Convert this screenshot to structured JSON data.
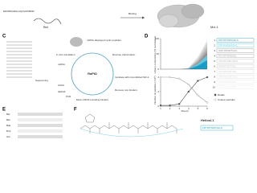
{
  "panel_a": {
    "sequence": "EDIIRNIARHLAQVGDSMDR",
    "label": "Bid"
  },
  "panel_b": {
    "arrow": "Binding",
    "protein": "Mcl-1"
  },
  "panel_c": {
    "letter": "C",
    "peptides": "mRNA-displayed cyclic peptides",
    "translation": "in vitro translation",
    "reverse": "Reverse transcription",
    "rapid": "RaPID",
    "incubate": "Incubate with immobilized Mcl-1",
    "remove": "Remove non-binders",
    "elute": "Elute mRNA encoding binders",
    "mrna": "mRNA",
    "cdna": "cDNA",
    "dsdna": "dsDNA",
    "sequencing": "Sequencing",
    "pcr": "PCR"
  },
  "panel_d": {
    "letter": "D",
    "composition": {
      "type": "area",
      "ylabel": "Library composition (% cumulative)",
      "x": [
        1,
        2,
        3,
        4,
        5,
        6
      ],
      "xlim": [
        1,
        6
      ],
      "ylim": [
        0,
        100
      ],
      "yticks": [
        0,
        50,
        100
      ],
      "series": [
        {
          "name": "1",
          "color": "#1b9cc4",
          "values": [
            0,
            0,
            0,
            1,
            12,
            30
          ]
        },
        {
          "name": "2",
          "color": "#5cc6e0",
          "values": [
            0,
            0,
            0,
            1,
            6,
            15
          ]
        },
        {
          "name": "3",
          "color": "#8e8e8e",
          "values": [
            0,
            0,
            0,
            0.5,
            4,
            10
          ]
        },
        {
          "name": "4",
          "color": "#a4a4a4",
          "values": [
            0,
            0,
            0,
            0.5,
            4,
            9
          ]
        },
        {
          "name": "5",
          "color": "#b6b6b6",
          "values": [
            0,
            0,
            0,
            0.5,
            3,
            8
          ]
        },
        {
          "name": "6",
          "color": "#c4c4c4",
          "values": [
            0,
            0,
            0,
            0.5,
            3,
            7
          ]
        },
        {
          "name": "7",
          "color": "#d0d0d0",
          "values": [
            0,
            0,
            0,
            0.3,
            3,
            6
          ]
        },
        {
          "name": "8",
          "color": "#dadada",
          "values": [
            0,
            0,
            0,
            0.3,
            2,
            5
          ]
        },
        {
          "name": "9",
          "color": "#e3e3e3",
          "values": [
            0,
            0,
            0,
            0.2,
            2,
            3
          ]
        },
        {
          "name": "10",
          "color": "#ebebeb",
          "values": [
            0,
            0,
            0,
            0.2,
            2,
            2
          ]
        }
      ],
      "sequences": [
        "FRYWTSRTGDLS",
        "FRYWNDMSGKL",
        "WRYWTARTGDL",
        "FKYWTSRSGEL",
        "YRYWTSRTGDM",
        "FRFWTSKTGDL",
        "FRYWSSRTGEL",
        "WRYWNSRTGDL",
        "FRYWTARSGDL",
        "FKYWNSRTGDL"
      ]
    },
    "counts": {
      "type": "line",
      "ylabel": "Number of peptides (×10⁵)",
      "xlabel": "Round",
      "x": [
        1,
        2,
        3,
        4,
        5,
        6
      ],
      "xlim": [
        1,
        6
      ],
      "xticks": [
        1,
        2,
        3,
        4,
        5,
        6
      ],
      "ylim": [
        0,
        4
      ],
      "yticks": [
        0,
        2,
        4
      ],
      "series": [
        {
          "name": "Reads",
          "color": "#555555",
          "values": [
            0.1,
            0.1,
            0.3,
            2,
            3.5,
            4
          ]
        },
        {
          "name": "Unique peptides",
          "color": "#999999",
          "values": [
            4,
            4,
            3.8,
            3,
            1.5,
            0.5
          ]
        }
      ]
    }
  },
  "panel_e": {
    "letter": "E",
    "rows": [
      "Bid",
      "Bim",
      "Bak",
      "Bmf",
      "Hrk"
    ]
  },
  "panel_f": {
    "letter": "F",
    "label": "Helical-1",
    "sequence": "FRYWTSRTGDLS"
  }
}
